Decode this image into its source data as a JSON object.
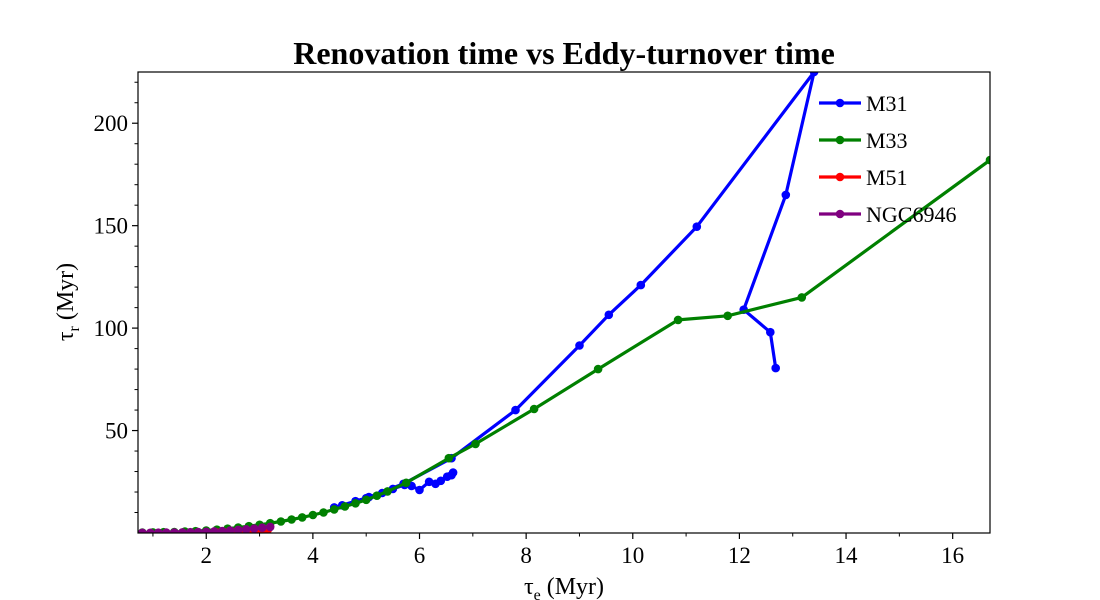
{
  "chart_data": {
    "type": "line",
    "title": "Renovation time vs Eddy-turnover time",
    "xlabel_main": "τ",
    "xlabel_sub": "e",
    "xlabel_unit": " (Myr)",
    "ylabel_main": "τ",
    "ylabel_sub": "r",
    "ylabel_unit": " (Myr)",
    "xlim": [
      0.72,
      16.7
    ],
    "ylim": [
      0,
      225
    ],
    "xticks": [
      2,
      4,
      6,
      8,
      10,
      12,
      14,
      16
    ],
    "yticks": [
      50,
      100,
      150,
      200
    ],
    "grid": false,
    "legend_position": "upper right",
    "series": [
      {
        "name": "M31",
        "color": "#0000ff",
        "x": [
          6.63,
          6.6,
          6.52,
          6.4,
          6.3,
          6.18,
          6.0,
          5.85,
          5.72,
          5.5,
          5.3,
          5.05,
          4.8,
          4.55,
          4.4,
          5.0,
          5.7,
          6.6,
          7.8,
          9.0,
          9.55,
          10.15,
          11.2,
          13.4,
          12.87,
          12.08,
          12.58,
          12.68
        ],
        "y": [
          29.5,
          28.2,
          27.5,
          25.5,
          24.0,
          25.0,
          21.0,
          23.0,
          23.5,
          21.5,
          19.5,
          17.5,
          15.5,
          13.5,
          12.5,
          17.0,
          24.0,
          36.5,
          60.0,
          91.5,
          106.5,
          121.0,
          149.5,
          225.0,
          165.0,
          109.0,
          98.0,
          80.5
        ]
      },
      {
        "name": "M33",
        "color": "#008000",
        "x": [
          0.8,
          1.0,
          1.2,
          1.4,
          1.6,
          1.8,
          2.0,
          2.2,
          2.4,
          2.6,
          2.8,
          3.0,
          3.2,
          3.4,
          3.6,
          3.8,
          4.0,
          4.2,
          4.4,
          4.6,
          4.8,
          5.0,
          5.2,
          5.4,
          5.75,
          6.55,
          7.05,
          8.15,
          9.35,
          10.85,
          11.78,
          13.17,
          16.7
        ],
        "y": [
          0.2,
          0.3,
          0.4,
          0.5,
          0.7,
          0.9,
          1.2,
          1.6,
          2.1,
          2.7,
          3.3,
          4.0,
          4.8,
          5.6,
          6.6,
          7.6,
          8.8,
          10.0,
          11.5,
          13.0,
          14.5,
          16.2,
          18.2,
          20.3,
          24.5,
          36.5,
          43.5,
          60.5,
          80.0,
          104.0,
          106.0,
          115.0,
          182.0
        ]
      },
      {
        "name": "M51",
        "color": "#ff0000",
        "x": [
          2.2,
          2.35,
          2.5,
          2.65,
          2.8,
          2.95,
          3.05,
          3.15
        ],
        "y": [
          0.2,
          0.3,
          0.4,
          0.6,
          0.8,
          1.0,
          1.2,
          1.4
        ]
      },
      {
        "name": "NGC6946",
        "color": "#800080",
        "x": [
          0.8,
          0.95,
          1.1,
          1.25,
          1.4,
          1.55,
          1.7,
          1.85,
          2.0,
          2.15,
          2.3,
          2.45,
          2.6,
          2.75,
          2.9,
          3.05,
          3.2
        ],
        "y": [
          0.1,
          0.1,
          0.15,
          0.2,
          0.25,
          0.3,
          0.4,
          0.5,
          0.6,
          0.8,
          1.0,
          1.2,
          1.5,
          1.8,
          2.2,
          2.6,
          3.0
        ]
      }
    ]
  }
}
